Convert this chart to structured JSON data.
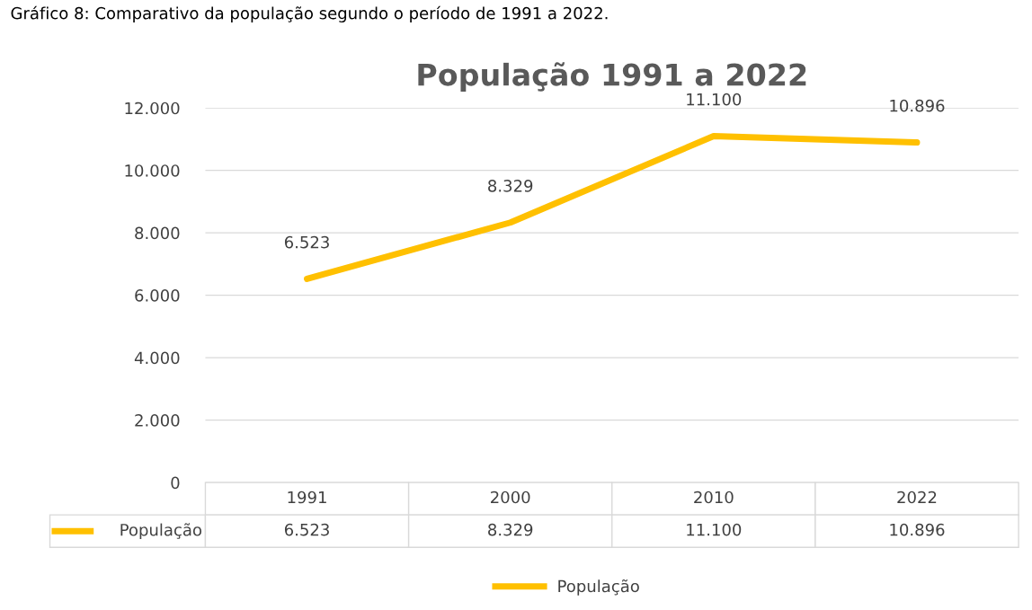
{
  "chart_data": {
    "type": "line",
    "title": "População 1991 a 2022",
    "annotations": [
      "Gráfico 8: Comparativo da população segundo o período de 1991 a 2022."
    ],
    "categories": [
      "1991",
      "2000",
      "2010",
      "2022"
    ],
    "series": [
      {
        "name": "População",
        "color": "#ffc000",
        "values": [
          6523,
          8329,
          11100,
          10896
        ],
        "value_labels": [
          "6.523",
          "8.329",
          "11.100",
          "10.896"
        ]
      }
    ],
    "ylim": [
      0,
      12000
    ],
    "yticks": [
      {
        "value": 0,
        "label": "0"
      },
      {
        "value": 2000,
        "label": "2.000"
      },
      {
        "value": 4000,
        "label": "4.000"
      },
      {
        "value": 6000,
        "label": "6.000"
      },
      {
        "value": 8000,
        "label": "8.000"
      },
      {
        "value": 10000,
        "label": "10.000"
      },
      {
        "value": 12000,
        "label": "12.000"
      }
    ],
    "grid": "y",
    "legend": "bottom",
    "marker": "none",
    "line_style": "solid"
  }
}
